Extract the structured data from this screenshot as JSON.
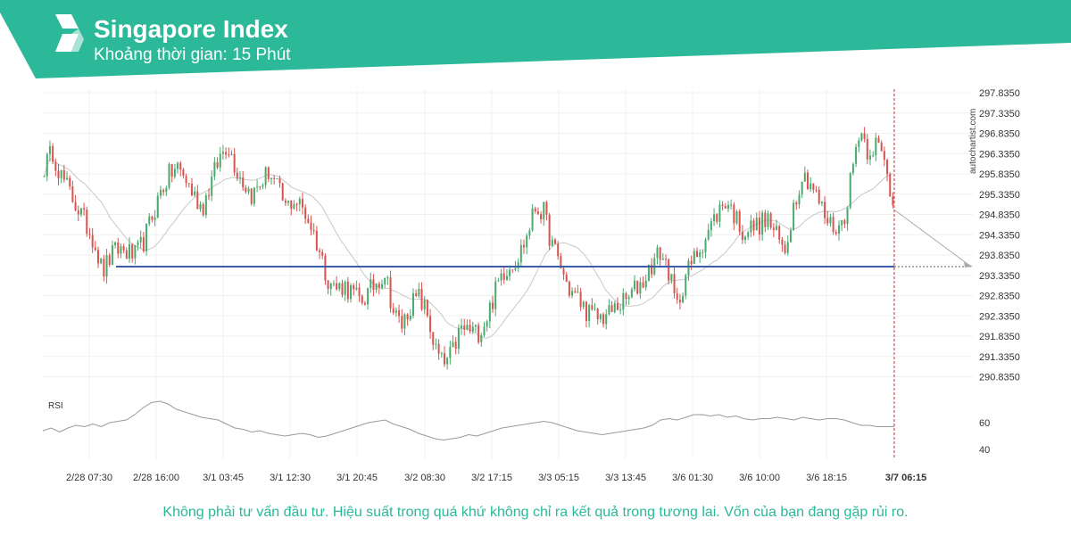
{
  "header": {
    "title": "Singapore Index",
    "subtitle": "Khoảng thời gian: 15 Phút",
    "color": "#2bb99a"
  },
  "watermark": "autochartist.com",
  "disclaimer": "Không phải tư vấn đầu tư. Hiệu suất trong quá khứ không chỉ ra kết quả trong tương lai. Vốn của bạn đang gặp rủi ro.",
  "rsi_label": "RSI",
  "chart_data": {
    "type": "candlestick",
    "y_ticks": [
      "297.8350",
      "297.3350",
      "296.8350",
      "296.3350",
      "295.8350",
      "295.3350",
      "294.8350",
      "294.3350",
      "293.8350",
      "293.3350",
      "292.8350",
      "292.3350",
      "291.8350",
      "291.3350",
      "290.8350"
    ],
    "ylim": [
      290.6,
      298.0
    ],
    "x_ticks": [
      "2/28 07:30",
      "2/28 16:00",
      "3/1 03:45",
      "3/1 12:30",
      "3/1 20:45",
      "3/2 08:30",
      "3/2 17:15",
      "3/3 05:15",
      "3/3 13:45",
      "3/6 01:30",
      "3/6 10:00",
      "3/6 18:15",
      "3/7 06:15"
    ],
    "support_level": 293.55,
    "forecast_start": 294.95,
    "forecast_end": 293.55,
    "close_path": [
      296.0,
      296.4,
      295.8,
      295.4,
      295.0,
      294.6,
      294.2,
      293.4,
      293.8,
      294.0,
      293.9,
      293.8,
      294.2,
      294.8,
      295.4,
      295.8,
      296.0,
      295.7,
      295.3,
      295.0,
      295.6,
      296.2,
      296.6,
      296.0,
      295.6,
      295.3,
      295.6,
      295.9,
      295.5,
      295.0,
      295.2,
      295.0,
      294.6,
      294.0,
      293.3,
      293.0,
      293.1,
      292.9,
      292.7,
      292.9,
      293.2,
      293.4,
      292.4,
      292.1,
      292.6,
      292.8,
      292.4,
      291.5,
      291.1,
      291.4,
      292.0,
      292.0,
      291.9,
      292.2,
      292.8,
      293.4,
      293.6,
      293.8,
      294.3,
      295.0,
      294.9,
      294.1,
      293.6,
      293.0,
      292.8,
      292.5,
      292.3,
      292.3,
      292.4,
      292.6,
      292.7,
      293.0,
      293.2,
      293.6,
      293.9,
      293.5,
      292.5,
      293.3,
      293.7,
      294.1,
      294.5,
      294.9,
      295.2,
      294.8,
      294.4,
      294.5,
      294.6,
      294.7,
      294.3,
      293.9,
      295.0,
      295.8,
      295.7,
      295.2,
      294.7,
      294.5,
      294.6,
      295.8,
      297.0,
      296.4,
      296.6,
      296.1,
      295.1
    ],
    "rsi": {
      "ticks": [
        "60",
        "40"
      ],
      "ylim": [
        20,
        100
      ],
      "values": [
        54,
        56,
        53,
        56,
        58,
        57,
        59,
        57,
        60,
        61,
        62,
        66,
        71,
        75,
        76,
        74,
        70,
        68,
        66,
        64,
        63,
        62,
        59,
        56,
        55,
        53,
        54,
        52,
        51,
        50,
        51,
        52,
        51,
        49,
        50,
        52,
        54,
        56,
        58,
        60,
        61,
        62,
        59,
        57,
        55,
        52,
        50,
        48,
        47,
        48,
        49,
        51,
        50,
        52,
        54,
        56,
        57,
        58,
        59,
        60,
        61,
        60,
        58,
        56,
        54,
        53,
        52,
        51,
        52,
        53,
        54,
        55,
        56,
        58,
        62,
        63,
        62,
        64,
        66,
        66,
        65,
        66,
        64,
        65,
        63,
        62,
        63,
        63,
        64,
        63,
        62,
        64,
        63,
        62,
        63,
        63,
        62,
        60,
        58,
        58,
        57,
        57,
        57
      ]
    }
  }
}
